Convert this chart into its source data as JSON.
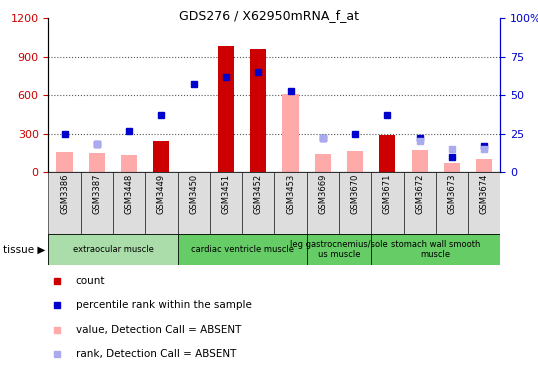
{
  "title": "GDS276 / X62950mRNA_f_at",
  "samples": [
    "GSM3386",
    "GSM3387",
    "GSM3448",
    "GSM3449",
    "GSM3450",
    "GSM3451",
    "GSM3452",
    "GSM3453",
    "GSM3669",
    "GSM3670",
    "GSM3671",
    "GSM3672",
    "GSM3673",
    "GSM3674"
  ],
  "red_bars": [
    0,
    0,
    0,
    240,
    0,
    980,
    960,
    0,
    0,
    0,
    290,
    0,
    0,
    0
  ],
  "blue_squares": [
    25,
    18,
    27,
    37,
    57,
    62,
    65,
    53,
    22,
    25,
    37,
    22,
    10,
    17
  ],
  "pink_bars": [
    155,
    145,
    135,
    0,
    0,
    0,
    0,
    610,
    140,
    165,
    0,
    175,
    70,
    100
  ],
  "lavender_squares": [
    0,
    18,
    0,
    0,
    0,
    0,
    0,
    0,
    22,
    0,
    0,
    20,
    15,
    15
  ],
  "groups": [
    {
      "label": "extraocular muscle",
      "start": 0,
      "end": 3,
      "color": "#aaddaa"
    },
    {
      "label": "cardiac ventricle muscle",
      "start": 4,
      "end": 7,
      "color": "#66cc66"
    },
    {
      "label": "leg gastrocnemius/sole\nus muscle",
      "start": 8,
      "end": 9,
      "color": "#66cc66"
    },
    {
      "label": "stomach wall smooth\nmuscle",
      "start": 10,
      "end": 13,
      "color": "#66cc66"
    }
  ],
  "ylim_left": [
    0,
    1200
  ],
  "ylim_right": [
    0,
    100
  ],
  "yticks_left": [
    0,
    300,
    600,
    900,
    1200
  ],
  "yticks_right": [
    0,
    25,
    50,
    75,
    100
  ],
  "red_color": "#cc0000",
  "pink_color": "#ffaaaa",
  "blue_color": "#0000cc",
  "lavender_color": "#aaaaee",
  "dotted_line_color": "#555555",
  "plot_bg": "#ffffff",
  "xtick_bg": "#dddddd"
}
